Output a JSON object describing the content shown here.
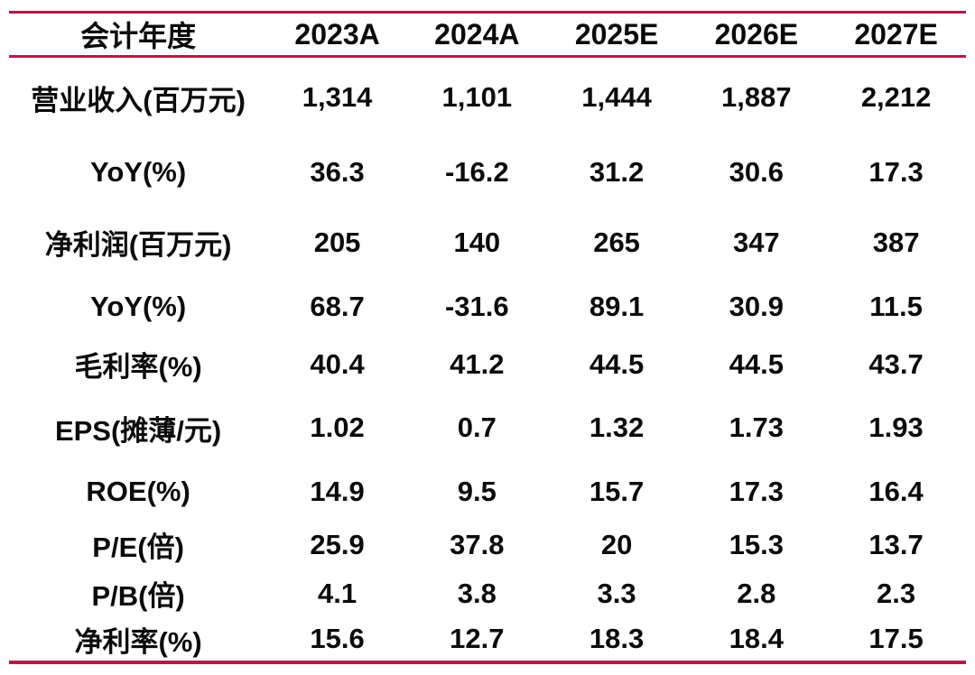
{
  "accent_color": "#B01C44",
  "chart_data": {
    "type": "table",
    "columns": [
      "会计年度",
      "2023A",
      "2024A",
      "2025E",
      "2026E",
      "2027E"
    ],
    "rows": [
      {
        "label": "营业收入(百万元)",
        "values": [
          "1,314",
          "1,101",
          "1,444",
          "1,887",
          "2,212"
        ]
      },
      {
        "label": "YoY(%)",
        "values": [
          "36.3",
          "-16.2",
          "31.2",
          "30.6",
          "17.3"
        ]
      },
      {
        "label": "净利润(百万元)",
        "values": [
          "205",
          "140",
          "265",
          "347",
          "387"
        ]
      },
      {
        "label": "YoY(%)",
        "values": [
          "68.7",
          "-31.6",
          "89.1",
          "30.9",
          "11.5"
        ]
      },
      {
        "label": "毛利率(%)",
        "values": [
          "40.4",
          "41.2",
          "44.5",
          "44.5",
          "43.7"
        ]
      },
      {
        "label": "EPS(摊薄/元)",
        "values": [
          "1.02",
          "0.7",
          "1.32",
          "1.73",
          "1.93"
        ]
      },
      {
        "label": "ROE(%)",
        "values": [
          "14.9",
          "9.5",
          "15.7",
          "17.3",
          "16.4"
        ]
      },
      {
        "label": "P/E(倍)",
        "values": [
          "25.9",
          "37.8",
          "20",
          "15.3",
          "13.7"
        ]
      },
      {
        "label": "P/B(倍)",
        "values": [
          "4.1",
          "3.8",
          "3.3",
          "2.8",
          "2.3"
        ]
      },
      {
        "label": "净利率(%)",
        "values": [
          "15.6",
          "12.7",
          "18.3",
          "18.4",
          "17.5"
        ]
      }
    ]
  }
}
